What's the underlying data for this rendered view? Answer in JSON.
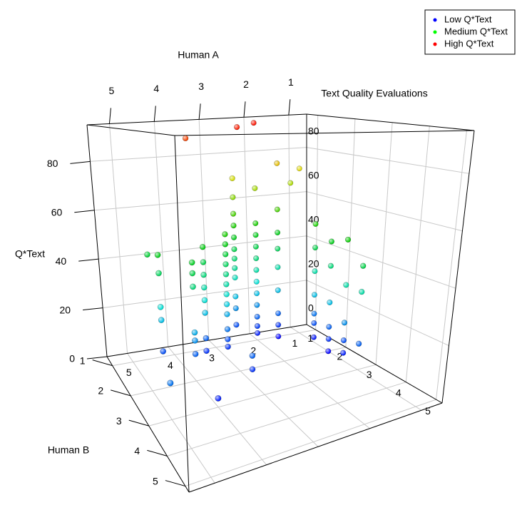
{
  "chart_data": {
    "type": "scatter3d",
    "title": "Text Quality Evaluations",
    "xlabel": "Human A",
    "ylabel": "Human B",
    "zlabel": "Q*Text",
    "xlim": [
      0.6,
      5.5
    ],
    "ylim": [
      0.7,
      5.2
    ],
    "zlim": [
      0,
      95
    ],
    "xticks": [
      1,
      2,
      3,
      4,
      5
    ],
    "yticks": [
      1,
      2,
      3,
      4,
      5
    ],
    "zticks": [
      0,
      20,
      40,
      60,
      80
    ],
    "grid": true,
    "color_scale": [
      "#0000ff",
      "#00e0e0",
      "#00cc00",
      "#e0e000",
      "#ff0000"
    ],
    "legend_position": "top-right",
    "legend": [
      {
        "name": "Low Q*Text",
        "color": "#0000ff"
      },
      {
        "name": "Medium Q*Text",
        "color": "#00ff00"
      },
      {
        "name": "High Q*Text",
        "color": "#ff0000"
      }
    ],
    "x": [
      4.5,
      4.5,
      4.5,
      4.5,
      4.5,
      4,
      4,
      4,
      4,
      4,
      4,
      3.5,
      3.5,
      3.5,
      3.5,
      3.5,
      3.5,
      3.5,
      3.5,
      3,
      3,
      3,
      3,
      3,
      3,
      3,
      3,
      3,
      3,
      3,
      3,
      2.5,
      2.5,
      2.5,
      2.5,
      2.5,
      2.5,
      2.5,
      2.5,
      2.5,
      2.5,
      2.5,
      2.5,
      2,
      2,
      2,
      2,
      2,
      2,
      2,
      2,
      2,
      2,
      2,
      2,
      1.5,
      1.5,
      1.5,
      1.5,
      1.5,
      1.5,
      1.5,
      1.5,
      1.5,
      1,
      1,
      1,
      1,
      1,
      1,
      1,
      1,
      1,
      1,
      1,
      1,
      1,
      1,
      1,
      1,
      1,
      1,
      1,
      1,
      1,
      5,
      4,
      4.5,
      3.5,
      2.5,
      2,
      1,
      1.2,
      3,
      3
    ],
    "y": [
      1.5,
      1.5,
      1.5,
      1.5,
      1.5,
      2,
      2,
      2,
      2,
      2,
      2,
      1.5,
      1.5,
      1.5,
      1.5,
      1.5,
      1.5,
      1.5,
      1.5,
      1.5,
      1.5,
      1.5,
      1.5,
      1.5,
      1.5,
      1.5,
      1.5,
      1.5,
      1.5,
      1.5,
      1.5,
      1,
      1,
      1,
      1,
      1,
      1,
      1,
      1,
      1,
      1,
      1,
      1,
      1,
      1,
      1,
      1,
      1,
      1,
      1,
      1,
      1,
      1,
      1,
      1,
      1,
      1,
      1,
      1,
      1,
      1,
      1,
      1,
      1,
      1.5,
      1.5,
      1.5,
      1.5,
      1.5,
      1.5,
      1.5,
      2,
      2,
      2,
      2,
      2,
      2,
      2.5,
      2.5,
      2.5,
      2.5,
      2.5,
      3,
      3,
      3,
      3,
      3,
      1,
      1,
      1.2,
      1,
      1,
      1,
      2.5,
      2.5
    ],
    "z": [
      8,
      20,
      25,
      38,
      45,
      10,
      15,
      18,
      35,
      40,
      44,
      5,
      10,
      20,
      25,
      30,
      35,
      40,
      46,
      5,
      8,
      12,
      18,
      22,
      26,
      30,
      34,
      38,
      42,
      46,
      50,
      8,
      15,
      20,
      28,
      32,
      36,
      40,
      45,
      50,
      55,
      62,
      70,
      3,
      6,
      10,
      15,
      20,
      25,
      30,
      35,
      40,
      45,
      50,
      65,
      0,
      5,
      10,
      20,
      30,
      38,
      45,
      55,
      75,
      2,
      8,
      12,
      20,
      30,
      40,
      50,
      0,
      5,
      10,
      20,
      35,
      45,
      3,
      8,
      15,
      30,
      48,
      10,
      30,
      40,
      12,
      3,
      42,
      88,
      92,
      93,
      72,
      66,
      5,
      10
    ]
  }
}
